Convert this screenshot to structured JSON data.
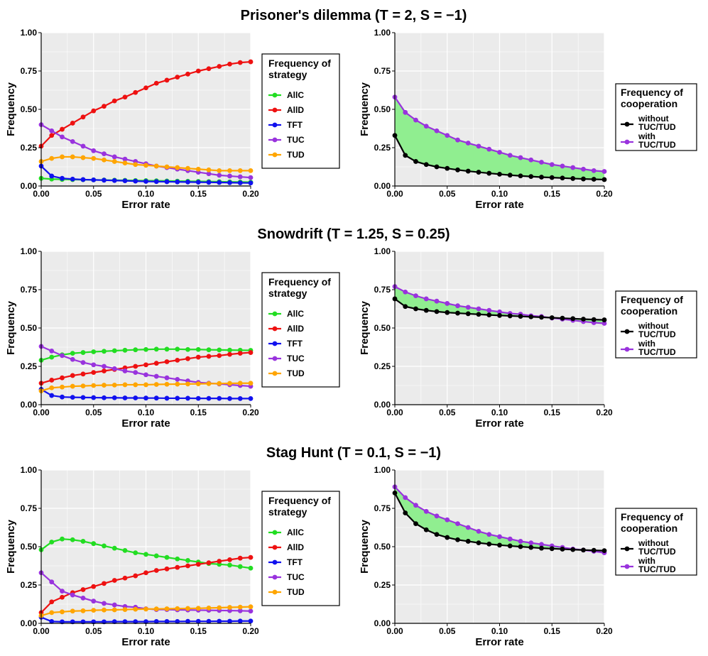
{
  "legend_strategy": {
    "title_lines": [
      "Frequency of",
      "strategy"
    ],
    "entries": [
      {
        "label": "AllC",
        "color": "#22dd22"
      },
      {
        "label": "AllD",
        "color": "#ee1111"
      },
      {
        "label": "TFT",
        "color": "#1111ee"
      },
      {
        "label": "TUC",
        "color": "#9933dd"
      },
      {
        "label": "TUD",
        "color": "#ffa500"
      }
    ]
  },
  "legend_coop": {
    "title_lines": [
      "Frequency of",
      "cooperation"
    ],
    "entries": [
      {
        "label_lines": [
          "without",
          "TUC/TUD"
        ],
        "color": "#000000"
      },
      {
        "label_lines": [
          "with",
          "TUC/TUD"
        ],
        "color": "#9933dd"
      }
    ]
  },
  "colors": {
    "panel_bg": "#ebebeb",
    "grid": "#ffffff",
    "fill_between": "#90ee90"
  },
  "chart_data": [
    {
      "game": "Prisoner's dilemma (T = 2, S = −1)",
      "strategy_panel": {
        "type": "line",
        "xlabel": "Error rate",
        "ylabel": "Frequency",
        "xlim": [
          0,
          0.2
        ],
        "ylim": [
          0,
          1
        ],
        "xticks": [
          "0.00",
          "0.05",
          "0.10",
          "0.15",
          "0.20"
        ],
        "yticks": [
          "0.00",
          "0.25",
          "0.50",
          "0.75",
          "1.00"
        ],
        "x": [
          0,
          0.01,
          0.02,
          0.03,
          0.04,
          0.05,
          0.06,
          0.07,
          0.08,
          0.09,
          0.1,
          0.11,
          0.12,
          0.13,
          0.14,
          0.15,
          0.16,
          0.17,
          0.18,
          0.19,
          0.2
        ],
        "series": [
          {
            "name": "AllC",
            "values": [
              0.05,
              0.045,
              0.043,
              0.042,
              0.041,
              0.04,
              0.039,
              0.038,
              0.037,
              0.036,
              0.035,
              0.034,
              0.033,
              0.032,
              0.031,
              0.03,
              0.029,
              0.028,
              0.027,
              0.026,
              0.025
            ]
          },
          {
            "name": "AllD",
            "values": [
              0.26,
              0.33,
              0.37,
              0.41,
              0.45,
              0.49,
              0.52,
              0.555,
              0.58,
              0.61,
              0.64,
              0.67,
              0.69,
              0.71,
              0.73,
              0.75,
              0.765,
              0.78,
              0.795,
              0.805,
              0.81
            ]
          },
          {
            "name": "TFT",
            "values": [
              0.13,
              0.065,
              0.05,
              0.045,
              0.042,
              0.04,
              0.038,
              0.036,
              0.034,
              0.032,
              0.03,
              0.029,
              0.028,
              0.027,
              0.026,
              0.025,
              0.024,
              0.023,
              0.022,
              0.021,
              0.02
            ]
          },
          {
            "name": "TUC",
            "values": [
              0.4,
              0.36,
              0.32,
              0.29,
              0.26,
              0.23,
              0.21,
              0.19,
              0.175,
              0.16,
              0.145,
              0.13,
              0.12,
              0.11,
              0.1,
              0.09,
              0.08,
              0.07,
              0.065,
              0.06,
              0.055
            ]
          },
          {
            "name": "TUD",
            "values": [
              0.16,
              0.18,
              0.19,
              0.19,
              0.185,
              0.18,
              0.17,
              0.16,
              0.15,
              0.14,
              0.135,
              0.13,
              0.125,
              0.12,
              0.115,
              0.11,
              0.105,
              0.1,
              0.1,
              0.1,
              0.1
            ]
          }
        ]
      },
      "coop_panel": {
        "type": "area",
        "xlabel": "Error rate",
        "ylabel": "Frequency",
        "xlim": [
          0,
          0.2
        ],
        "ylim": [
          0,
          1
        ],
        "xticks": [
          "0.00",
          "0.05",
          "0.10",
          "0.15",
          "0.20"
        ],
        "yticks": [
          "0.00",
          "0.25",
          "0.50",
          "0.75",
          "1.00"
        ],
        "x": [
          0,
          0.01,
          0.02,
          0.03,
          0.04,
          0.05,
          0.06,
          0.07,
          0.08,
          0.09,
          0.1,
          0.11,
          0.12,
          0.13,
          0.14,
          0.15,
          0.16,
          0.17,
          0.18,
          0.19,
          0.2
        ],
        "series": [
          {
            "name": "without TUC/TUD",
            "values": [
              0.33,
              0.2,
              0.16,
              0.14,
              0.125,
              0.115,
              0.105,
              0.097,
              0.09,
              0.083,
              0.077,
              0.071,
              0.066,
              0.062,
              0.058,
              0.055,
              0.052,
              0.049,
              0.046,
              0.044,
              0.042
            ]
          },
          {
            "name": "with TUC/TUD",
            "values": [
              0.58,
              0.48,
              0.43,
              0.39,
              0.36,
              0.33,
              0.3,
              0.28,
              0.26,
              0.24,
              0.22,
              0.2,
              0.185,
              0.17,
              0.155,
              0.14,
              0.13,
              0.12,
              0.11,
              0.1,
              0.095
            ]
          }
        ]
      }
    },
    {
      "game": "Snowdrift (T = 1.25, S = 0.25)",
      "strategy_panel": {
        "type": "line",
        "xlabel": "Error rate",
        "ylabel": "Frequency",
        "xlim": [
          0,
          0.2
        ],
        "ylim": [
          0,
          1
        ],
        "xticks": [
          "0.00",
          "0.05",
          "0.10",
          "0.15",
          "0.20"
        ],
        "yticks": [
          "0.00",
          "0.25",
          "0.50",
          "0.75",
          "1.00"
        ],
        "x": [
          0,
          0.01,
          0.02,
          0.03,
          0.04,
          0.05,
          0.06,
          0.07,
          0.08,
          0.09,
          0.1,
          0.11,
          0.12,
          0.13,
          0.14,
          0.15,
          0.16,
          0.17,
          0.18,
          0.19,
          0.2
        ],
        "series": [
          {
            "name": "AllC",
            "values": [
              0.29,
              0.31,
              0.325,
              0.335,
              0.34,
              0.345,
              0.348,
              0.352,
              0.355,
              0.358,
              0.36,
              0.362,
              0.362,
              0.362,
              0.36,
              0.36,
              0.358,
              0.357,
              0.356,
              0.355,
              0.354
            ]
          },
          {
            "name": "AllD",
            "values": [
              0.14,
              0.16,
              0.175,
              0.19,
              0.2,
              0.21,
              0.22,
              0.23,
              0.24,
              0.25,
              0.26,
              0.27,
              0.28,
              0.29,
              0.3,
              0.31,
              0.315,
              0.32,
              0.328,
              0.335,
              0.34
            ]
          },
          {
            "name": "TFT",
            "values": [
              0.1,
              0.06,
              0.05,
              0.048,
              0.047,
              0.046,
              0.045,
              0.045,
              0.044,
              0.044,
              0.043,
              0.043,
              0.042,
              0.042,
              0.042,
              0.041,
              0.041,
              0.041,
              0.04,
              0.04,
              0.04
            ]
          },
          {
            "name": "TUC",
            "values": [
              0.38,
              0.35,
              0.32,
              0.295,
              0.275,
              0.26,
              0.25,
              0.235,
              0.22,
              0.21,
              0.195,
              0.185,
              0.175,
              0.165,
              0.155,
              0.145,
              0.14,
              0.135,
              0.13,
              0.125,
              0.12
            ]
          },
          {
            "name": "TUD",
            "values": [
              0.09,
              0.11,
              0.115,
              0.12,
              0.122,
              0.125,
              0.127,
              0.128,
              0.13,
              0.13,
              0.13,
              0.132,
              0.133,
              0.134,
              0.135,
              0.136,
              0.137,
              0.138,
              0.139,
              0.14,
              0.14
            ]
          }
        ]
      },
      "coop_panel": {
        "type": "area",
        "xlabel": "Error rate",
        "ylabel": "Frequency",
        "xlim": [
          0,
          0.2
        ],
        "ylim": [
          0,
          1
        ],
        "xticks": [
          "0.00",
          "0.05",
          "0.10",
          "0.15",
          "0.20"
        ],
        "yticks": [
          "0.00",
          "0.25",
          "0.50",
          "0.75",
          "1.00"
        ],
        "x": [
          0,
          0.01,
          0.02,
          0.03,
          0.04,
          0.05,
          0.06,
          0.07,
          0.08,
          0.09,
          0.1,
          0.11,
          0.12,
          0.13,
          0.14,
          0.15,
          0.16,
          0.17,
          0.18,
          0.19,
          0.2
        ],
        "series": [
          {
            "name": "without TUC/TUD",
            "values": [
              0.69,
              0.64,
              0.625,
              0.615,
              0.607,
              0.601,
              0.597,
              0.593,
              0.589,
              0.585,
              0.582,
              0.579,
              0.576,
              0.573,
              0.57,
              0.567,
              0.564,
              0.561,
              0.558,
              0.555,
              0.553
            ]
          },
          {
            "name": "with TUC/TUD",
            "values": [
              0.77,
              0.735,
              0.71,
              0.69,
              0.675,
              0.66,
              0.645,
              0.635,
              0.625,
              0.615,
              0.605,
              0.595,
              0.59,
              0.58,
              0.575,
              0.565,
              0.558,
              0.55,
              0.542,
              0.535,
              0.53
            ]
          }
        ]
      }
    },
    {
      "game": "Stag Hunt (T = 0.1, S = −1)",
      "strategy_panel": {
        "type": "line",
        "xlabel": "Error rate",
        "ylabel": "Frequency",
        "xlim": [
          0,
          0.2
        ],
        "ylim": [
          0,
          1
        ],
        "xticks": [
          "0.00",
          "0.05",
          "0.10",
          "0.15",
          "0.20"
        ],
        "yticks": [
          "0.00",
          "0.25",
          "0.50",
          "0.75",
          "1.00"
        ],
        "x": [
          0,
          0.01,
          0.02,
          0.03,
          0.04,
          0.05,
          0.06,
          0.07,
          0.08,
          0.09,
          0.1,
          0.11,
          0.12,
          0.13,
          0.14,
          0.15,
          0.16,
          0.17,
          0.18,
          0.19,
          0.2
        ],
        "series": [
          {
            "name": "AllC",
            "values": [
              0.48,
              0.53,
              0.55,
              0.545,
              0.535,
              0.52,
              0.505,
              0.49,
              0.475,
              0.46,
              0.45,
              0.44,
              0.43,
              0.42,
              0.41,
              0.4,
              0.39,
              0.385,
              0.38,
              0.37,
              0.36
            ]
          },
          {
            "name": "AllD",
            "values": [
              0.07,
              0.14,
              0.17,
              0.2,
              0.22,
              0.24,
              0.26,
              0.28,
              0.295,
              0.31,
              0.33,
              0.345,
              0.355,
              0.365,
              0.375,
              0.385,
              0.395,
              0.405,
              0.415,
              0.425,
              0.43
            ]
          },
          {
            "name": "TFT",
            "values": [
              0.04,
              0.012,
              0.01,
              0.01,
              0.01,
              0.01,
              0.01,
              0.011,
              0.011,
              0.011,
              0.011,
              0.012,
              0.012,
              0.012,
              0.013,
              0.013,
              0.013,
              0.014,
              0.014,
              0.015,
              0.015
            ]
          },
          {
            "name": "TUC",
            "values": [
              0.33,
              0.27,
              0.21,
              0.185,
              0.165,
              0.145,
              0.13,
              0.12,
              0.11,
              0.105,
              0.095,
              0.09,
              0.09,
              0.088,
              0.087,
              0.086,
              0.085,
              0.084,
              0.083,
              0.082,
              0.08
            ]
          },
          {
            "name": "TUD",
            "values": [
              0.05,
              0.07,
              0.075,
              0.08,
              0.082,
              0.085,
              0.087,
              0.088,
              0.09,
              0.092,
              0.093,
              0.094,
              0.095,
              0.096,
              0.097,
              0.098,
              0.1,
              0.102,
              0.104,
              0.106,
              0.108
            ]
          }
        ]
      },
      "coop_panel": {
        "type": "area",
        "xlabel": "Error rate",
        "ylabel": "Frequency",
        "xlim": [
          0,
          0.2
        ],
        "ylim": [
          0,
          1
        ],
        "xticks": [
          "0.00",
          "0.05",
          "0.10",
          "0.15",
          "0.20"
        ],
        "yticks": [
          "0.00",
          "0.25",
          "0.50",
          "0.75",
          "1.00"
        ],
        "x": [
          0,
          0.01,
          0.02,
          0.03,
          0.04,
          0.05,
          0.06,
          0.07,
          0.08,
          0.09,
          0.1,
          0.11,
          0.12,
          0.13,
          0.14,
          0.15,
          0.16,
          0.17,
          0.18,
          0.19,
          0.2
        ],
        "series": [
          {
            "name": "without TUC/TUD",
            "values": [
              0.85,
              0.72,
              0.65,
              0.61,
              0.58,
              0.56,
              0.545,
              0.535,
              0.525,
              0.517,
              0.51,
              0.505,
              0.5,
              0.495,
              0.49,
              0.487,
              0.484,
              0.481,
              0.478,
              0.476,
              0.474
            ]
          },
          {
            "name": "with TUC/TUD",
            "values": [
              0.89,
              0.82,
              0.77,
              0.73,
              0.7,
              0.675,
              0.65,
              0.625,
              0.6,
              0.58,
              0.565,
              0.55,
              0.535,
              0.525,
              0.515,
              0.505,
              0.495,
              0.485,
              0.478,
              0.47,
              0.46
            ]
          }
        ]
      }
    }
  ]
}
